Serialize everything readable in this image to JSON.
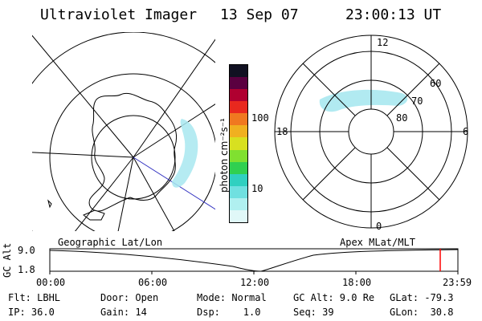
{
  "header": {
    "instrument": "Ultraviolet Imager",
    "date": "13 Sep 07",
    "time": "23:00:13 UT"
  },
  "colorbar": {
    "unit_label": "photon cm⁻²s⁻¹",
    "ticks": [
      "100",
      "10"
    ],
    "colors": [
      "#111122",
      "#5a0040",
      "#b00030",
      "#e8281e",
      "#f07820",
      "#f0b020",
      "#d8e020",
      "#80e030",
      "#30d050",
      "#30d0c0",
      "#70e0e0",
      "#b0f0f0",
      "#e0f8f8"
    ]
  },
  "mlt_plot": {
    "mlt_labels": {
      "top": "12",
      "right": "6",
      "bottom": "0",
      "left": "18"
    },
    "lat_labels": [
      "60",
      "70",
      "80"
    ]
  },
  "timeline": {
    "left_label": "Geographic Lat/Lon",
    "right_label": "Apex MLat/MLT",
    "axis_title": "GC Alt",
    "y_top": "9.0",
    "y_bottom": "1.8",
    "x_ticks": [
      "00:00",
      "06:00",
      "12:00",
      "18:00",
      "23:59"
    ],
    "marker_color": "#ff0000"
  },
  "info": {
    "row1": [
      {
        "name": "flt",
        "text": "Flt: LBHL"
      },
      {
        "name": "door",
        "text": "Door: Open"
      },
      {
        "name": "mode",
        "text": "Mode: Normal"
      },
      {
        "name": "gc-alt",
        "text": "GC Alt: 9.0 Re"
      },
      {
        "name": "glat",
        "text": "GLat: -79.3"
      }
    ],
    "row2": [
      {
        "name": "ip",
        "text": "IP: 36.0"
      },
      {
        "name": "gain",
        "text": "Gain: 14"
      },
      {
        "name": "dsp",
        "text": "Dsp:    1.0"
      },
      {
        "name": "seq",
        "text": "Seq: 39"
      },
      {
        "name": "glon",
        "text": "GLon:  30.8"
      }
    ]
  },
  "theme": {
    "foreground": "#000000",
    "background": "#ffffff",
    "aurora": "#a8e8f0"
  }
}
